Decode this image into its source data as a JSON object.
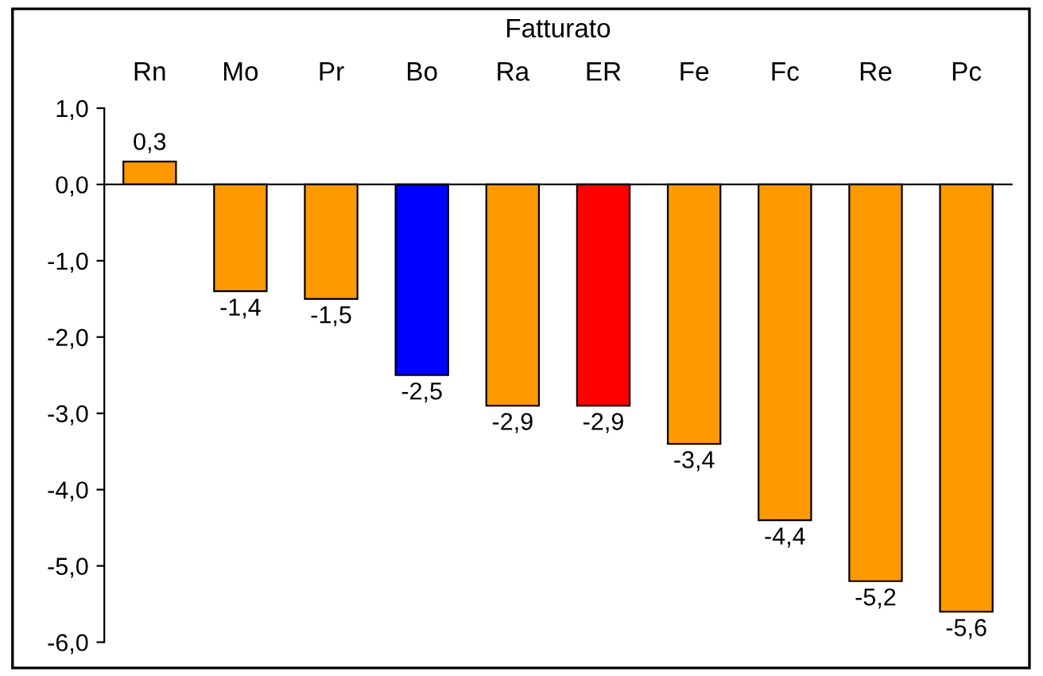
{
  "chart_data": {
    "type": "bar",
    "title": "Fatturato",
    "categories": [
      "Rn",
      "Mo",
      "Pr",
      "Bo",
      "Ra",
      "ER",
      "Fe",
      "Fc",
      "Re",
      "Pc"
    ],
    "values": [
      0.3,
      -1.4,
      -1.5,
      -2.5,
      -2.9,
      -2.9,
      -3.4,
      -4.4,
      -5.2,
      -5.6
    ],
    "colors": [
      "#ff9900",
      "#ff9900",
      "#ff9900",
      "#0000ff",
      "#ff9900",
      "#ff0000",
      "#ff9900",
      "#ff9900",
      "#ff9900",
      "#ff9900"
    ],
    "value_labels": [
      "0,3",
      "-1,4",
      "-1,5",
      "-2,5",
      "-2,9",
      "-2,9",
      "-3,4",
      "-4,4",
      "-5,2",
      "-5,6"
    ],
    "ylim": [
      -6,
      1
    ],
    "yticks": [
      {
        "value": -6,
        "label": "-6,0"
      },
      {
        "value": -5,
        "label": "-5,0"
      },
      {
        "value": -4,
        "label": "-4,0"
      },
      {
        "value": -3,
        "label": "-3,0"
      },
      {
        "value": -2,
        "label": "-2,0"
      },
      {
        "value": -1,
        "label": "-1,0"
      },
      {
        "value": 0,
        "label": "0,0"
      },
      {
        "value": 1,
        "label": "1,0"
      }
    ],
    "legend": false
  }
}
